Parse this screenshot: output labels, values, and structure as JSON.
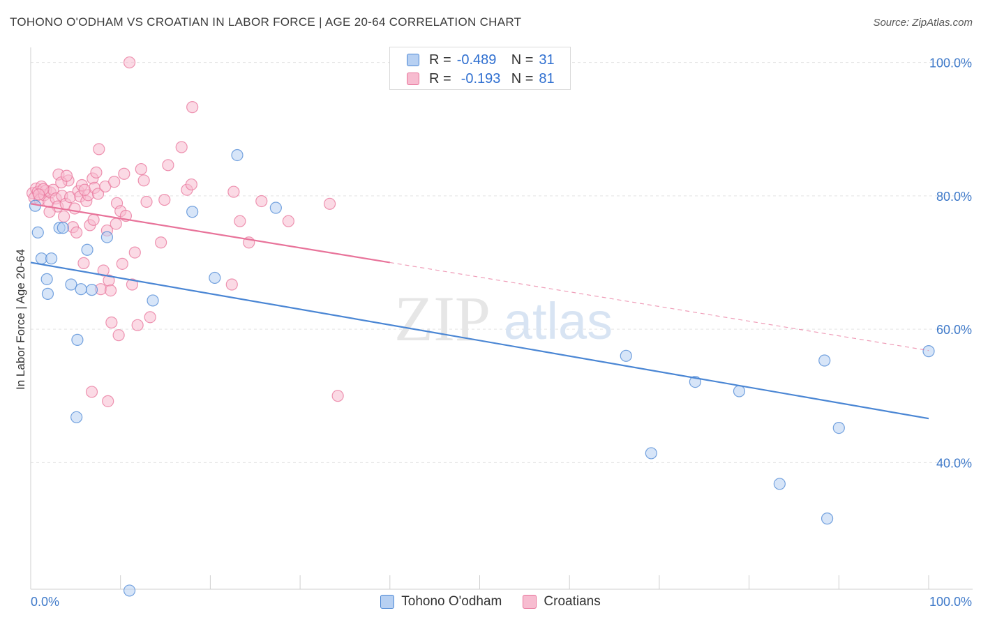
{
  "header": {
    "title": "TOHONO O'ODHAM VS CROATIAN IN LABOR FORCE | AGE 20-64 CORRELATION CHART",
    "source": "Source: ZipAtlas.com"
  },
  "colors": {
    "blue": "#4a86d4",
    "blue_fill": "#b7d0f2",
    "pink": "#e8739a",
    "pink_fill": "#f7bcd0",
    "axis_text": "#3e79c9",
    "grid": "#e3e3e3"
  },
  "legend": {
    "rows": [
      {
        "r_label": "R =",
        "r_value": "-0.489",
        "n_label": "N =",
        "n_value": "31"
      },
      {
        "r_label": "R =",
        "r_value": "-0.193",
        "n_label": "N =",
        "n_value": "81"
      }
    ]
  },
  "watermark": {
    "zip": "ZIP",
    "atlas": "atlas"
  },
  "chart_data": {
    "type": "scatter",
    "title": "TOHONO O'ODHAM VS CROATIAN IN LABOR FORCE | AGE 20-64 CORRELATION CHART",
    "xlabel": "",
    "ylabel": "In Labor Force | Age 20-64",
    "xlim": [
      0,
      100
    ],
    "ylim": [
      21,
      101
    ],
    "x_tick_labels": [
      "0.0%",
      "100.0%"
    ],
    "y_ticks": [
      40,
      60,
      80,
      100
    ],
    "y_tick_labels": [
      "40.0%",
      "60.0%",
      "80.0%",
      "100.0%"
    ],
    "grid": true,
    "legend_position": "bottom",
    "series": [
      {
        "name": "Tohono O'odham",
        "color": "#4a86d4",
        "points": [
          [
            0.5,
            78.5
          ],
          [
            0.8,
            74.5
          ],
          [
            1.2,
            70.6
          ],
          [
            1.8,
            67.5
          ],
          [
            2.3,
            70.6
          ],
          [
            3.2,
            75.2
          ],
          [
            3.6,
            75.2
          ],
          [
            4.5,
            66.7
          ],
          [
            5.2,
            58.4
          ],
          [
            5.6,
            66.0
          ],
          [
            6.3,
            71.9
          ],
          [
            6.8,
            65.9
          ],
          [
            8.5,
            73.8
          ],
          [
            11.0,
            20.8
          ],
          [
            13.6,
            64.3
          ],
          [
            18.0,
            77.6
          ],
          [
            20.5,
            67.7
          ],
          [
            23.0,
            86.1
          ],
          [
            27.3,
            78.2
          ],
          [
            5.1,
            46.8
          ],
          [
            1.9,
            65.3
          ],
          [
            47.5,
            100.0
          ],
          [
            66.3,
            56.0
          ],
          [
            69.1,
            41.4
          ],
          [
            74.0,
            52.1
          ],
          [
            78.9,
            50.7
          ],
          [
            83.4,
            36.8
          ],
          [
            88.4,
            55.3
          ],
          [
            88.7,
            31.6
          ],
          [
            90.0,
            45.2
          ],
          [
            100.0,
            56.7
          ]
        ],
        "trend": {
          "x": [
            0,
            100
          ],
          "y": [
            70.0,
            46.6
          ]
        }
      },
      {
        "name": "Croatians",
        "color": "#e8739a",
        "points": [
          [
            0.2,
            80.4
          ],
          [
            0.4,
            79.7
          ],
          [
            0.6,
            81.1
          ],
          [
            0.8,
            80.6
          ],
          [
            1.0,
            79.4
          ],
          [
            1.2,
            81.4
          ],
          [
            1.5,
            80.1
          ],
          [
            1.7,
            80.8
          ],
          [
            2.0,
            79.1
          ],
          [
            2.2,
            80.5
          ],
          [
            2.5,
            80.9
          ],
          [
            2.8,
            79.6
          ],
          [
            3.0,
            78.4
          ],
          [
            3.1,
            83.2
          ],
          [
            3.5,
            80.0
          ],
          [
            3.7,
            76.9
          ],
          [
            3.9,
            78.8
          ],
          [
            4.2,
            82.3
          ],
          [
            4.4,
            79.8
          ],
          [
            4.7,
            75.3
          ],
          [
            4.9,
            78.1
          ],
          [
            5.1,
            74.5
          ],
          [
            5.3,
            80.7
          ],
          [
            5.5,
            79.9
          ],
          [
            5.7,
            81.6
          ],
          [
            5.9,
            69.9
          ],
          [
            6.2,
            79.2
          ],
          [
            6.4,
            80.1
          ],
          [
            6.6,
            75.6
          ],
          [
            6.9,
            82.6
          ],
          [
            7.1,
            81.2
          ],
          [
            7.3,
            83.5
          ],
          [
            7.5,
            80.3
          ],
          [
            7.6,
            87.0
          ],
          [
            7.8,
            66.0
          ],
          [
            8.1,
            68.8
          ],
          [
            8.3,
            81.4
          ],
          [
            8.5,
            74.8
          ],
          [
            8.7,
            67.3
          ],
          [
            8.9,
            65.8
          ],
          [
            9.0,
            61.0
          ],
          [
            9.3,
            82.1
          ],
          [
            9.5,
            75.8
          ],
          [
            9.6,
            78.9
          ],
          [
            9.8,
            59.1
          ],
          [
            10.0,
            77.7
          ],
          [
            10.2,
            69.8
          ],
          [
            10.4,
            83.3
          ],
          [
            10.6,
            77.0
          ],
          [
            11.0,
            100.0
          ],
          [
            11.3,
            66.7
          ],
          [
            11.6,
            71.5
          ],
          [
            11.9,
            60.6
          ],
          [
            12.3,
            84.0
          ],
          [
            12.6,
            82.3
          ],
          [
            12.9,
            79.1
          ],
          [
            13.3,
            61.8
          ],
          [
            14.5,
            73.0
          ],
          [
            14.9,
            79.4
          ],
          [
            15.3,
            84.6
          ],
          [
            16.8,
            87.3
          ],
          [
            17.4,
            80.9
          ],
          [
            18.0,
            93.3
          ],
          [
            17.9,
            81.7
          ],
          [
            22.6,
            80.6
          ],
          [
            23.3,
            76.2
          ],
          [
            24.3,
            73.0
          ],
          [
            25.7,
            79.2
          ],
          [
            28.7,
            76.2
          ],
          [
            33.3,
            78.8
          ],
          [
            34.2,
            50.0
          ],
          [
            8.6,
            49.2
          ],
          [
            6.8,
            50.6
          ],
          [
            22.4,
            66.7
          ],
          [
            3.4,
            82.0
          ],
          [
            2.1,
            77.6
          ],
          [
            1.4,
            81.0
          ],
          [
            0.9,
            80.2
          ],
          [
            4.0,
            83.0
          ],
          [
            6.0,
            80.9
          ],
          [
            7.0,
            76.4
          ]
        ],
        "trend": {
          "x": [
            0,
            40
          ],
          "y": [
            78.8,
            70.0
          ]
        },
        "trend_dashed": {
          "x": [
            40,
            100
          ],
          "y": [
            70.0,
            56.8
          ]
        }
      }
    ]
  },
  "bottom_legend": {
    "items": [
      {
        "label": "Tohono O'odham"
      },
      {
        "label": "Croatians"
      }
    ]
  }
}
